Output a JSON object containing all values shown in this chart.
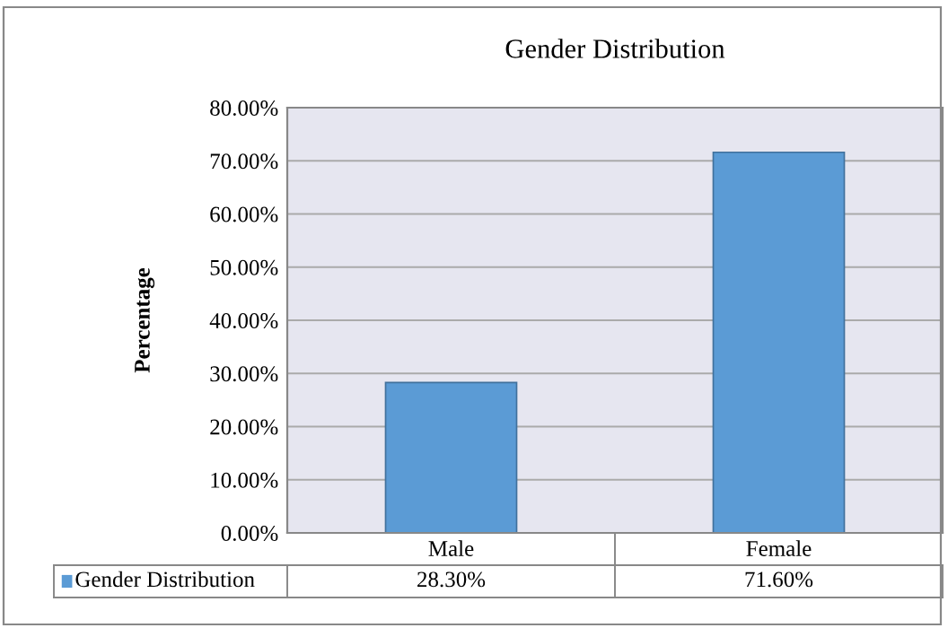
{
  "chart_data": {
    "type": "bar",
    "title": "Gender Distribution",
    "ylabel": "Percentage",
    "categories": [
      "Male",
      "Female"
    ],
    "series": [
      {
        "name": "Gender Distribution",
        "color": "#5b9bd5",
        "values": [
          28.3,
          71.6
        ],
        "value_labels": [
          "28.30%",
          "71.60%"
        ]
      }
    ],
    "ylim": [
      0,
      80
    ],
    "yticks": [
      {
        "value": 0,
        "label": "0.00%"
      },
      {
        "value": 10,
        "label": "10.00%"
      },
      {
        "value": 20,
        "label": "20.00%"
      },
      {
        "value": 30,
        "label": "30.00%"
      },
      {
        "value": 40,
        "label": "40.00%"
      },
      {
        "value": 50,
        "label": "50.00%"
      },
      {
        "value": 60,
        "label": "60.00%"
      },
      {
        "value": 70,
        "label": "70.00%"
      },
      {
        "value": 80,
        "label": "80.00%"
      }
    ],
    "grid": "y",
    "legend": "bottom"
  }
}
